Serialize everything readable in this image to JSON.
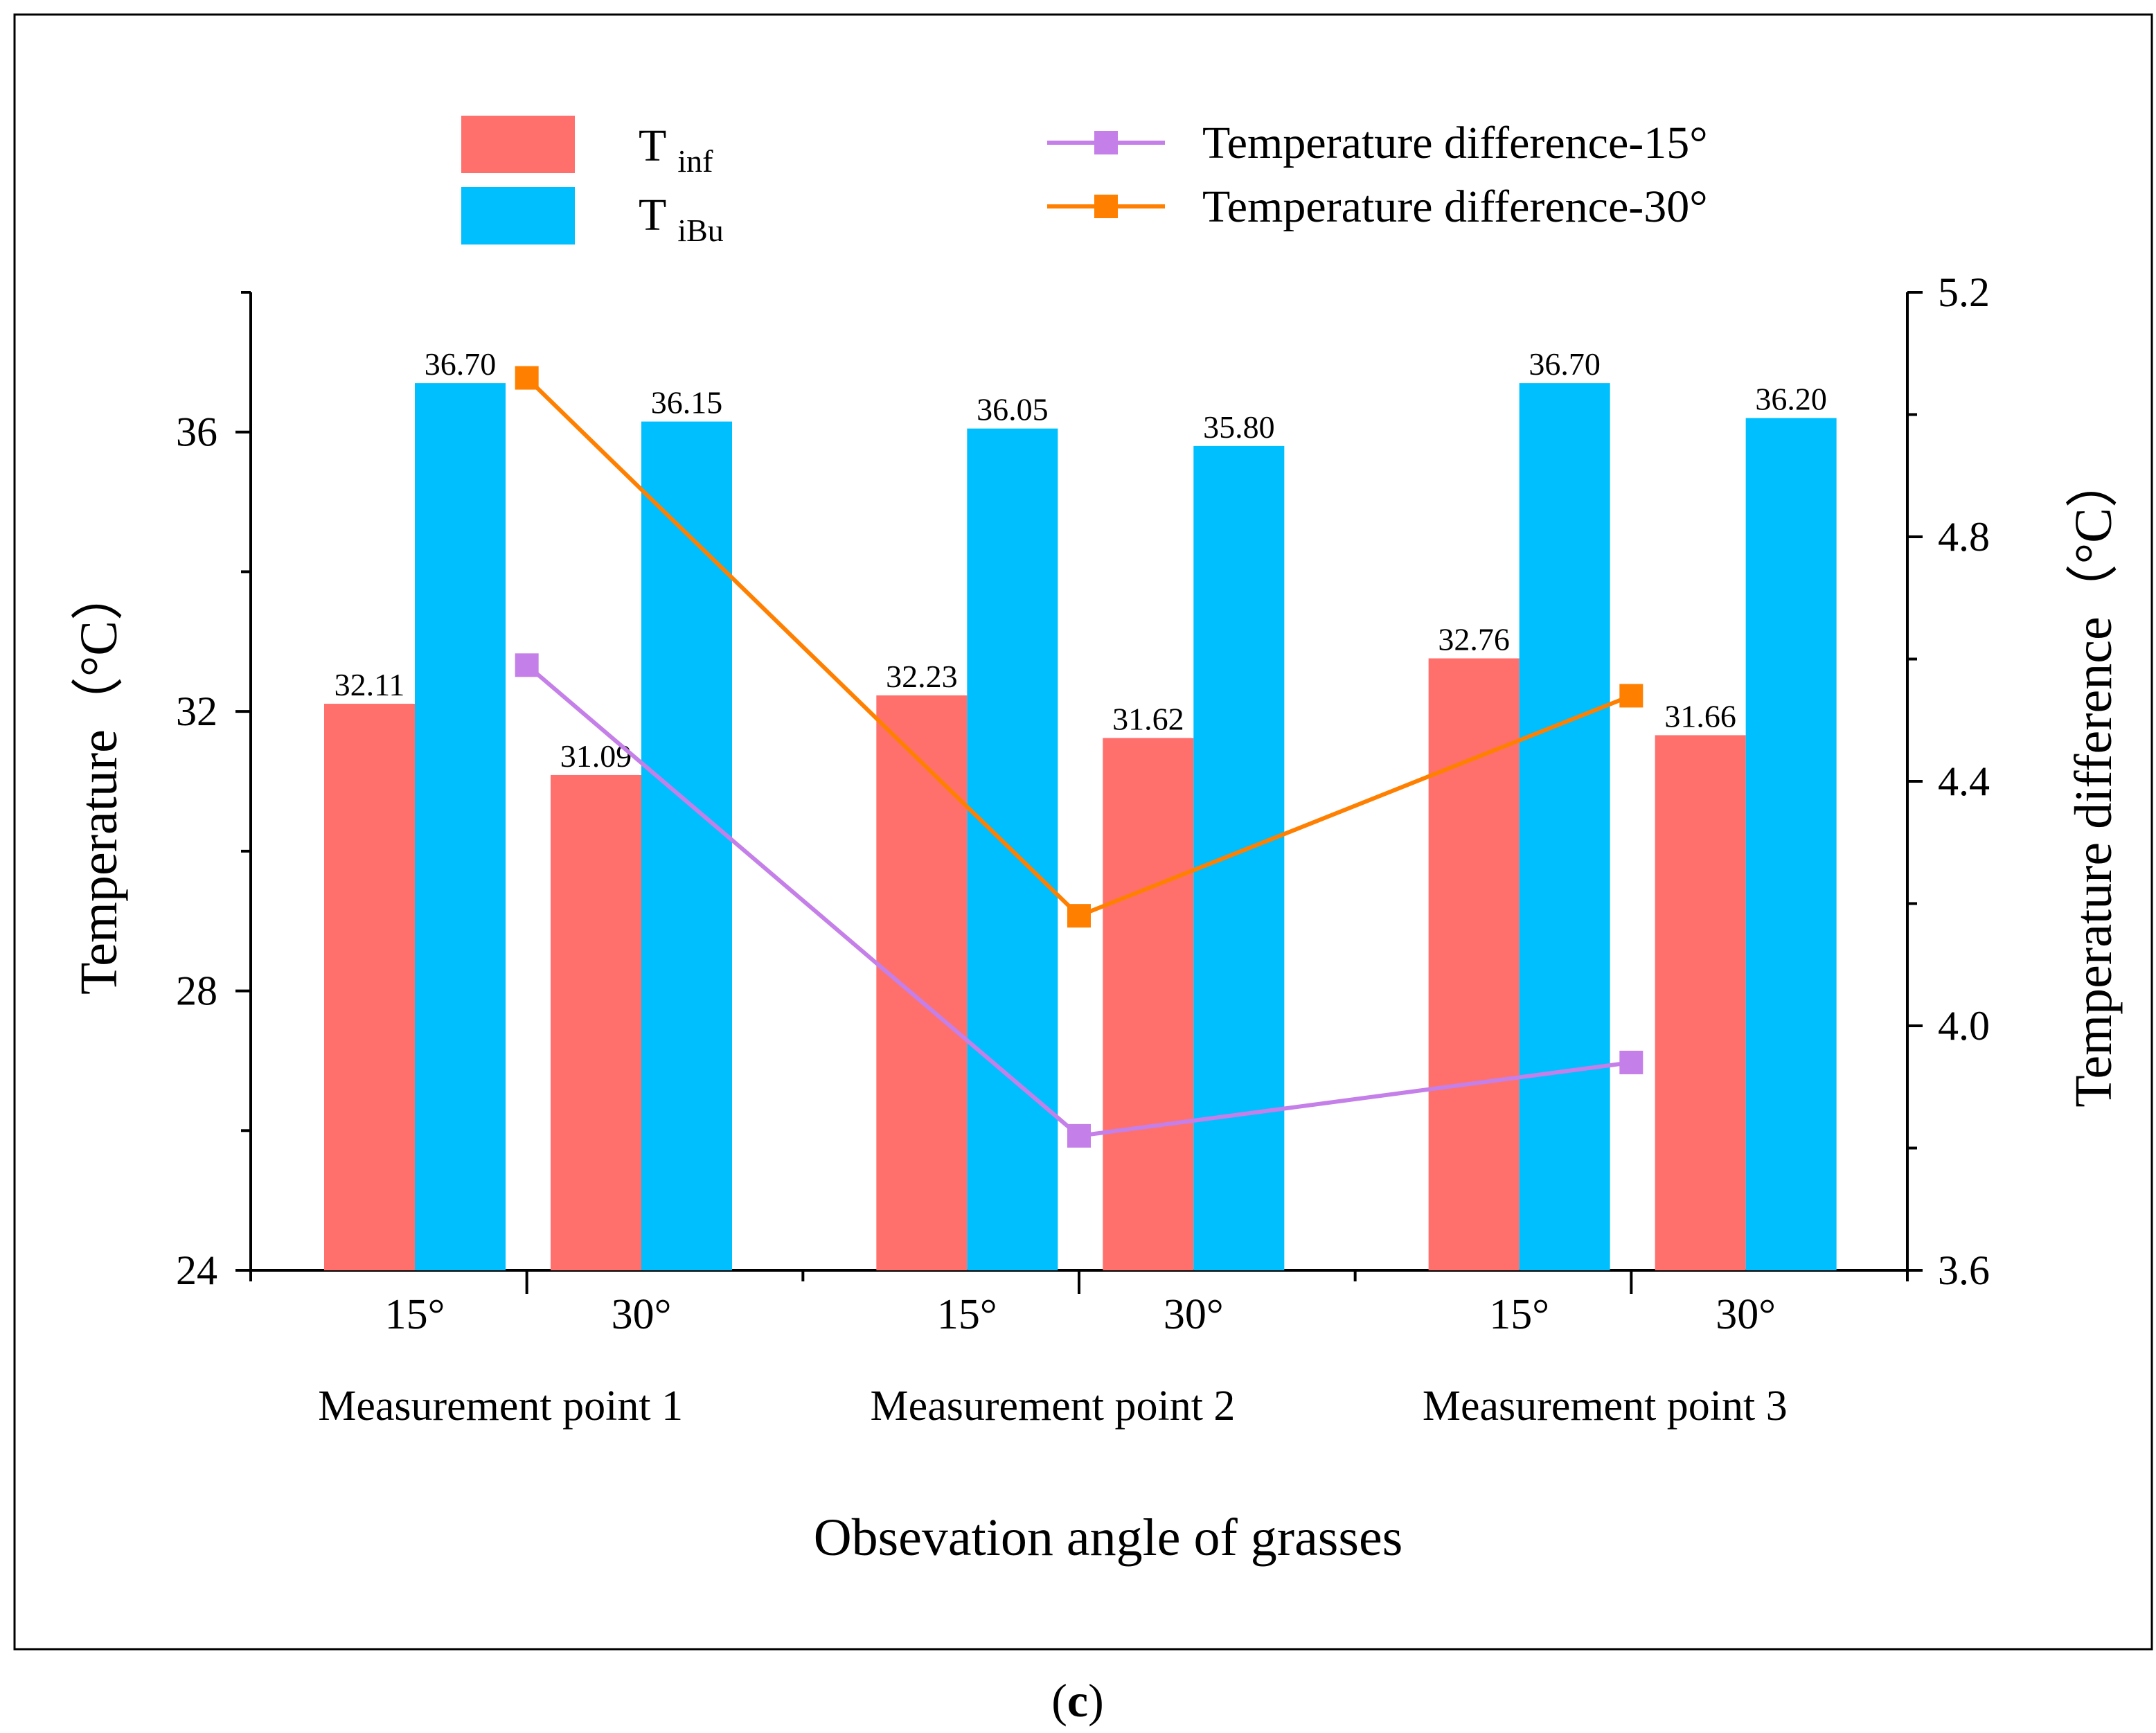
{
  "chart_data": {
    "type": "bar",
    "subtype": "grouped bar with line overlay (dual y-axis)",
    "groups": [
      "Measurement point 1",
      "Measurement point 2",
      "Measurement point 3"
    ],
    "angles": [
      "15°",
      "30°"
    ],
    "xlabel": "Obsevation angle of grasses",
    "ylabel": "Temperature（°C）",
    "y2label": "Temperature difference（°C）",
    "ylim": [
      24,
      38
    ],
    "yticks": [
      24,
      28,
      32,
      36
    ],
    "y2lim": [
      3.6,
      5.2
    ],
    "y2ticks": [
      3.6,
      4.0,
      4.4,
      4.8,
      5.2
    ],
    "bar_series": [
      {
        "name": "T inf",
        "name_main": "T",
        "name_sub": "inf",
        "color": "#FF706C",
        "values": [
          [
            32.11,
            31.09
          ],
          [
            32.23,
            31.62
          ],
          [
            32.76,
            31.66
          ]
        ],
        "labels": [
          [
            "32.11",
            "31.09"
          ],
          [
            "32.23",
            "31.62"
          ],
          [
            "32.76",
            "31.66"
          ]
        ]
      },
      {
        "name": "T iBu",
        "name_main": "T",
        "name_sub": "iBu",
        "color": "#00BFFF",
        "values": [
          [
            36.7,
            36.15
          ],
          [
            36.05,
            35.8
          ],
          [
            36.7,
            36.2
          ]
        ],
        "labels": [
          [
            "36.70",
            "36.15"
          ],
          [
            "36.05",
            "35.80"
          ],
          [
            "36.70",
            "36.20"
          ]
        ]
      }
    ],
    "line_series": [
      {
        "name": "Temperature difference-15°",
        "color": "#C57FE8",
        "axis": "right",
        "values": [
          4.59,
          3.82,
          3.94
        ]
      },
      {
        "name": "Temperature difference-30°",
        "color": "#FF8000",
        "axis": "right",
        "values": [
          5.06,
          4.18,
          4.54
        ]
      }
    ],
    "legend_position": "top",
    "grid": false
  },
  "caption": {
    "open": "(",
    "letter": "c",
    "close": ")"
  }
}
